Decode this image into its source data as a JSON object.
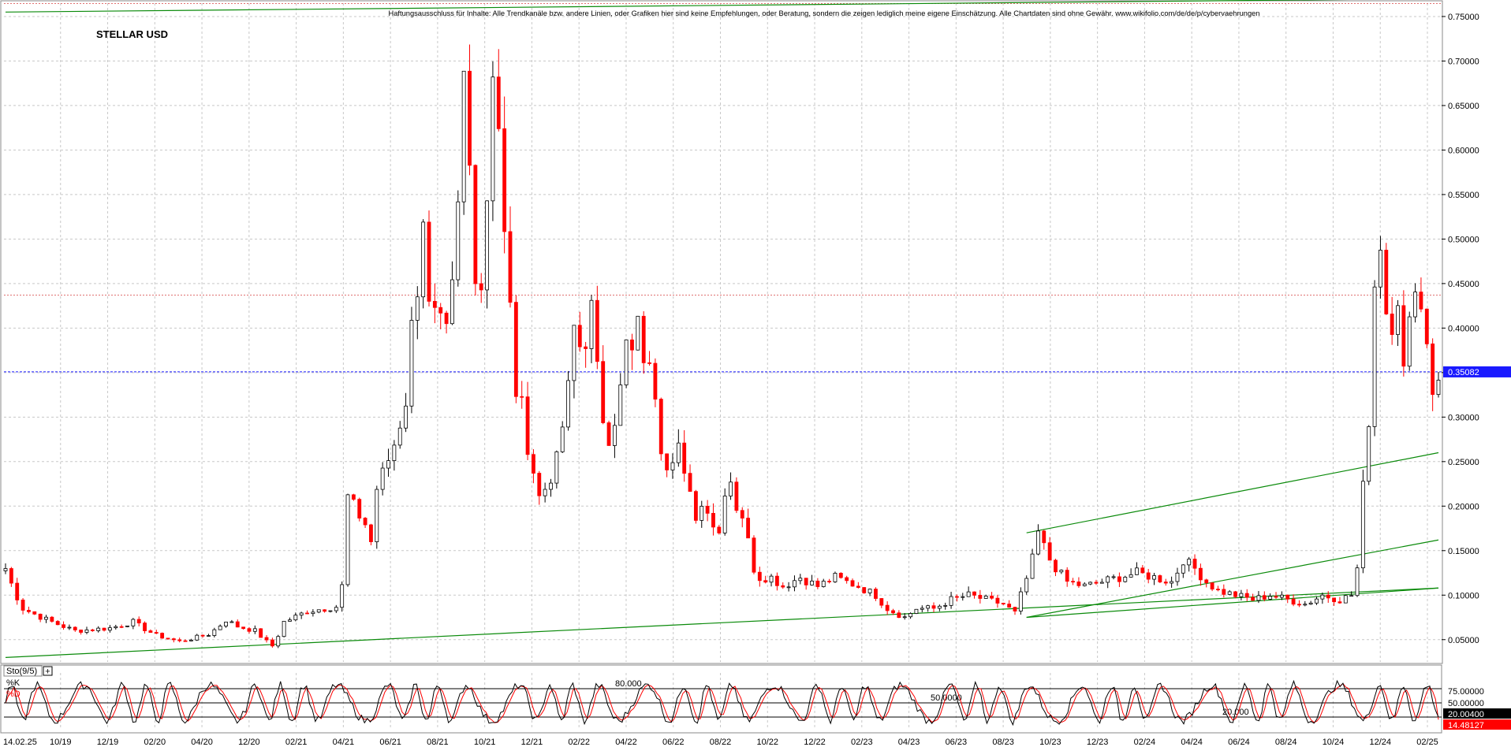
{
  "chart_data": [
    {
      "type": "candlestick",
      "title": "STELLAR USD",
      "disclaimer": "Haftungsausschluss für Inhalte: Alle Trendkanäle bzw. andere Linien, oder Grafiken hier sind keine Empfehlungen, oder Beratung, sondern die zeigen lediglich meine eigene Einschätzung. Alle Chartdaten sind ohne Gewähr. www.wikifolio.com/de/de/p/cybervaehrungen",
      "x_tick_labels": [
        "14.02.25",
        "10/19",
        "12/19",
        "02/20",
        "04/20",
        "12/20",
        "02/21",
        "04/21",
        "06/21",
        "08/21",
        "10/21",
        "12/21",
        "02/22",
        "04/22",
        "06/22",
        "08/22",
        "10/22",
        "12/22",
        "02/23",
        "04/23",
        "06/23",
        "08/23",
        "10/23",
        "12/23",
        "02/24",
        "04/24",
        "06/24",
        "08/24",
        "10/24",
        "12/24",
        "02/25"
      ],
      "y_tick_labels": [
        "0.75000",
        "0.70000",
        "0.65000",
        "0.60000",
        "0.55000",
        "0.50000",
        "0.45000",
        "0.40000",
        "0.35000",
        "0.30000",
        "0.25000",
        "0.20000",
        "0.15000",
        "0.10000",
        "0.05000"
      ],
      "ylim": [
        0.025,
        0.765
      ],
      "current_price_label": "0.35082",
      "current_price": 0.3508,
      "resistance_level": 0.437,
      "price_anchors": [
        [
          0,
          0.13
        ],
        [
          3,
          0.085
        ],
        [
          8,
          0.07
        ],
        [
          12,
          0.06
        ],
        [
          18,
          0.063
        ],
        [
          22,
          0.07
        ],
        [
          26,
          0.055
        ],
        [
          30,
          0.048
        ],
        [
          35,
          0.056
        ],
        [
          38,
          0.072
        ],
        [
          40,
          0.065
        ],
        [
          43,
          0.06
        ],
        [
          46,
          0.043
        ],
        [
          48,
          0.07
        ],
        [
          52,
          0.082
        ],
        [
          55,
          0.085
        ],
        [
          57,
          0.087
        ],
        [
          58,
          0.11
        ],
        [
          59,
          0.21
        ],
        [
          62,
          0.18
        ],
        [
          63,
          0.16
        ],
        [
          64,
          0.22
        ],
        [
          67,
          0.27
        ],
        [
          69,
          0.32
        ],
        [
          70,
          0.4
        ],
        [
          71,
          0.45
        ],
        [
          72,
          0.53
        ],
        [
          73,
          0.42
        ],
        [
          75,
          0.4
        ],
        [
          76,
          0.39
        ],
        [
          77,
          0.44
        ],
        [
          78,
          0.53
        ],
        [
          79,
          0.68
        ],
        [
          80,
          0.58
        ],
        [
          81,
          0.47
        ],
        [
          82,
          0.45
        ],
        [
          83,
          0.55
        ],
        [
          84,
          0.7
        ],
        [
          85,
          0.63
        ],
        [
          86,
          0.5
        ],
        [
          87,
          0.42
        ],
        [
          88,
          0.33
        ],
        [
          89,
          0.31
        ],
        [
          90,
          0.27
        ],
        [
          91,
          0.24
        ],
        [
          92,
          0.21
        ],
        [
          93,
          0.22
        ],
        [
          95,
          0.25
        ],
        [
          96,
          0.29
        ],
        [
          97,
          0.33
        ],
        [
          98,
          0.4
        ],
        [
          99,
          0.38
        ],
        [
          100,
          0.39
        ],
        [
          101,
          0.42
        ],
        [
          102,
          0.35
        ],
        [
          103,
          0.3
        ],
        [
          104,
          0.28
        ],
        [
          105,
          0.3
        ],
        [
          106,
          0.33
        ],
        [
          107,
          0.38
        ],
        [
          108,
          0.37
        ],
        [
          109,
          0.4
        ],
        [
          110,
          0.37
        ],
        [
          111,
          0.35
        ],
        [
          112,
          0.33
        ],
        [
          113,
          0.27
        ],
        [
          114,
          0.25
        ],
        [
          115,
          0.26
        ],
        [
          116,
          0.27
        ],
        [
          117,
          0.23
        ],
        [
          118,
          0.21
        ],
        [
          119,
          0.19
        ],
        [
          120,
          0.2
        ],
        [
          121,
          0.2
        ],
        [
          122,
          0.18
        ],
        [
          123,
          0.17
        ],
        [
          124,
          0.22
        ],
        [
          125,
          0.23
        ],
        [
          126,
          0.2
        ],
        [
          127,
          0.19
        ],
        [
          128,
          0.16
        ],
        [
          129,
          0.13
        ],
        [
          130,
          0.12
        ],
        [
          132,
          0.12
        ],
        [
          134,
          0.11
        ],
        [
          137,
          0.12
        ],
        [
          140,
          0.11
        ],
        [
          143,
          0.12
        ],
        [
          147,
          0.11
        ],
        [
          150,
          0.1
        ],
        [
          152,
          0.085
        ],
        [
          155,
          0.075
        ],
        [
          157,
          0.085
        ],
        [
          160,
          0.085
        ],
        [
          163,
          0.095
        ],
        [
          166,
          0.1
        ],
        [
          169,
          0.095
        ],
        [
          172,
          0.09
        ],
        [
          174,
          0.08
        ],
        [
          175,
          0.1
        ],
        [
          177,
          0.14
        ],
        [
          178,
          0.17
        ],
        [
          180,
          0.14
        ],
        [
          183,
          0.115
        ],
        [
          186,
          0.11
        ],
        [
          189,
          0.115
        ],
        [
          192,
          0.12
        ],
        [
          195,
          0.125
        ],
        [
          198,
          0.12
        ],
        [
          201,
          0.115
        ],
        [
          203,
          0.14
        ],
        [
          205,
          0.13
        ],
        [
          207,
          0.115
        ],
        [
          209,
          0.105
        ],
        [
          212,
          0.1
        ],
        [
          215,
          0.095
        ],
        [
          218,
          0.1
        ],
        [
          221,
          0.095
        ],
        [
          224,
          0.09
        ],
        [
          227,
          0.1
        ],
        [
          230,
          0.095
        ],
        [
          232,
          0.1
        ],
        [
          233,
          0.13
        ],
        [
          234,
          0.22
        ],
        [
          235,
          0.3
        ],
        [
          236,
          0.45
        ],
        [
          237,
          0.5
        ],
        [
          238,
          0.42
        ],
        [
          239,
          0.41
        ],
        [
          240,
          0.44
        ],
        [
          241,
          0.35
        ],
        [
          242,
          0.4
        ],
        [
          243,
          0.46
        ],
        [
          244,
          0.42
        ],
        [
          245,
          0.39
        ],
        [
          246,
          0.33
        ],
        [
          247,
          0.35
        ]
      ],
      "candle_count": 248,
      "trend_lines": [
        {
          "from": [
            0,
            0.03
          ],
          "to": [
            247,
            0.108
          ]
        },
        {
          "from": [
            0,
            0.755
          ],
          "to": [
            247,
            0.77
          ]
        },
        {
          "from": [
            176,
            0.075
          ],
          "to": [
            247,
            0.162
          ]
        },
        {
          "from": [
            176,
            0.17
          ],
          "to": [
            247,
            0.26
          ]
        },
        {
          "from": [
            176,
            0.075
          ],
          "to": [
            247,
            0.108
          ]
        }
      ]
    },
    {
      "type": "line",
      "name": "Sto(9/5)",
      "ylim": [
        0,
        100
      ],
      "levels": [
        {
          "value": 80,
          "label": "80.000"
        },
        {
          "value": 50,
          "label": "50.0000"
        },
        {
          "value": 20,
          "label": "20.000"
        }
      ],
      "y_tick_labels": [
        "75.00000",
        "50.00000"
      ],
      "series": [
        {
          "name": "%K",
          "color": "#000000",
          "last": 20.004,
          "last_label": "20.00400"
        },
        {
          "name": "%D",
          "color": "#ff0000",
          "last": 14.48127,
          "last_label": "14.48127"
        }
      ]
    }
  ],
  "colors": {
    "candle_up": "#000000",
    "candle_down": "#ff0000",
    "trend": "#0a8a0a",
    "grid": "#c8c8c8",
    "price_line": "#1a1aff",
    "price_badge": "#1a1aff",
    "k_badge": "#000000",
    "d_badge": "#ff0000"
  },
  "ui": {
    "indicator_expand_glyph": "+"
  }
}
